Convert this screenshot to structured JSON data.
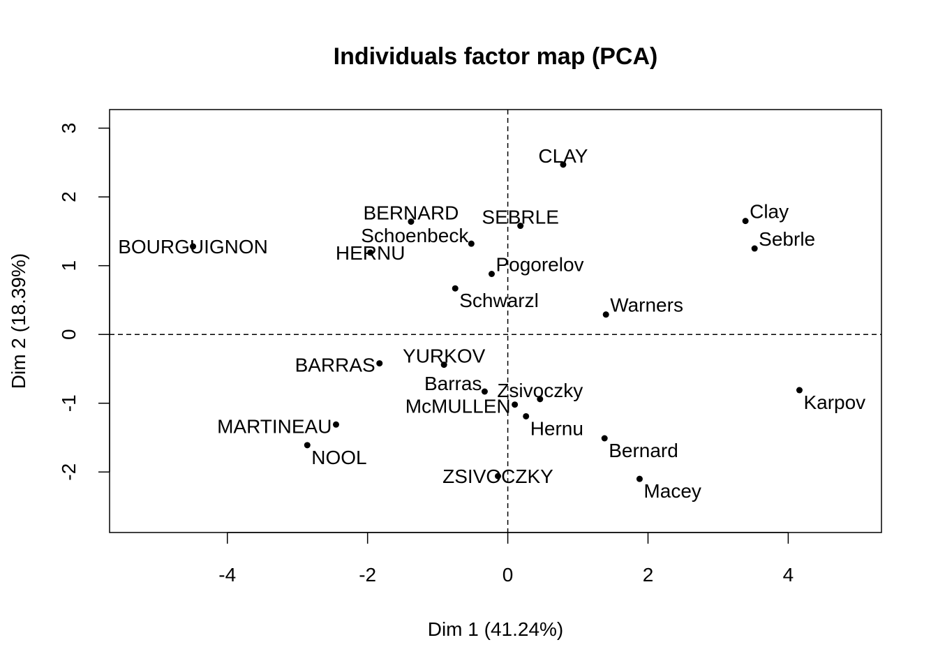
{
  "chart_data": {
    "type": "scatter",
    "title": "Individuals factor map (PCA)",
    "xlabel": "Dim 1 (41.24%)",
    "ylabel": "Dim 2 (18.39%)",
    "xlim": [
      -5.68,
      5.33
    ],
    "ylim": [
      -2.88,
      3.27
    ],
    "xticks": [
      -4,
      -2,
      0,
      2,
      4
    ],
    "yticks": [
      -2,
      -1,
      0,
      1,
      2,
      3
    ],
    "grid": false,
    "reference_lines": {
      "x": 0,
      "y": 0,
      "style": "dashed"
    },
    "points": [
      {
        "label": "BOURGUIGNON",
        "x": -4.49,
        "y": 1.28,
        "label_pos": "below"
      },
      {
        "label": "BERNARD",
        "x": -1.38,
        "y": 1.64,
        "label_pos": "above"
      },
      {
        "label": "Schoenbeck",
        "x": -0.52,
        "y": 1.32,
        "label_pos": "above-left"
      },
      {
        "label": "HERNU",
        "x": -1.96,
        "y": 1.19,
        "label_pos": "below"
      },
      {
        "label": "SEBRLE",
        "x": 0.18,
        "y": 1.58,
        "label_pos": "above"
      },
      {
        "label": "CLAY",
        "x": 0.79,
        "y": 2.47,
        "label_pos": "above"
      },
      {
        "label": "Pogorelov",
        "x": -0.23,
        "y": 0.88,
        "label_pos": "right"
      },
      {
        "label": "Schwarzl",
        "x": -0.75,
        "y": 0.67,
        "label_pos": "below-right"
      },
      {
        "label": "Clay",
        "x": 3.39,
        "y": 1.65,
        "label_pos": "right"
      },
      {
        "label": "Sebrle",
        "x": 3.52,
        "y": 1.25,
        "label_pos": "right"
      },
      {
        "label": "Warners",
        "x": 1.4,
        "y": 0.29,
        "label_pos": "right"
      },
      {
        "label": "BARRAS",
        "x": -1.83,
        "y": -0.42,
        "label_pos": "left"
      },
      {
        "label": "YURKOV",
        "x": -0.91,
        "y": -0.44,
        "label_pos": "above"
      },
      {
        "label": "Barras",
        "x": -0.33,
        "y": -0.83,
        "label_pos": "above-left"
      },
      {
        "label": "Zsivoczky",
        "x": 0.46,
        "y": -0.94,
        "label_pos": "above"
      },
      {
        "label": "McMULLEN",
        "x": 0.1,
        "y": -1.02,
        "label_pos": "left"
      },
      {
        "label": "Hernu",
        "x": 0.26,
        "y": -1.19,
        "label_pos": "below-right"
      },
      {
        "label": "Karpov",
        "x": 4.16,
        "y": -0.81,
        "label_pos": "below-right"
      },
      {
        "label": "MARTINEAU",
        "x": -2.45,
        "y": -1.31,
        "label_pos": "left"
      },
      {
        "label": "NOOL",
        "x": -2.86,
        "y": -1.61,
        "label_pos": "below-right"
      },
      {
        "label": "Bernard",
        "x": 1.38,
        "y": -1.51,
        "label_pos": "below-right"
      },
      {
        "label": "ZSIVOCZKY",
        "x": -0.14,
        "y": -2.06,
        "label_pos": "below"
      },
      {
        "label": "Macey",
        "x": 1.88,
        "y": -2.1,
        "label_pos": "below-right"
      }
    ]
  }
}
